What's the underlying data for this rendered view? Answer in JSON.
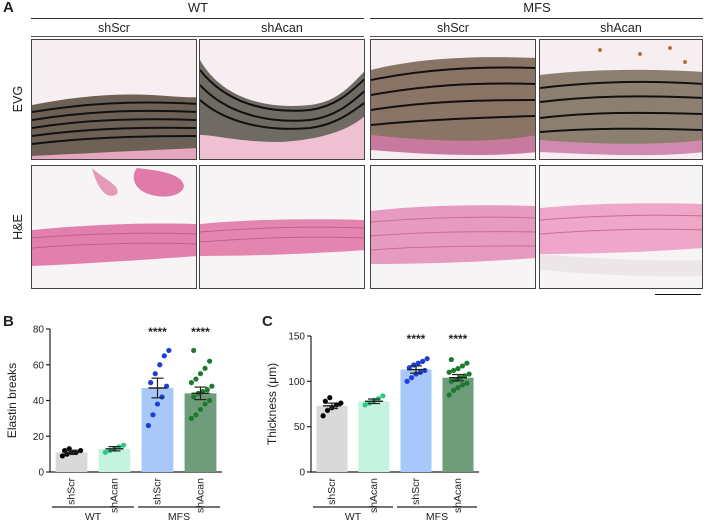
{
  "figure": {
    "panel_a": "A",
    "panel_b": "B",
    "panel_c": "C",
    "groups": [
      "WT",
      "MFS"
    ],
    "columns": [
      "shScr",
      "shAcan",
      "shScr",
      "shAcan"
    ],
    "rows": [
      "EVG",
      "H&E"
    ]
  },
  "colors": {
    "shScr_WT": "#d9d9d9",
    "shAcan_WT": "#c4f3df",
    "shScr_MFS": "#a7c8f8",
    "shAcan_MFS": "#6f9d7c",
    "dot_WT_shScr": "#000000",
    "dot_WT_shAcan": "#2ec88a",
    "dot_MFS_shScr": "#1b3fd6",
    "dot_MFS_shAcan": "#1c7a2c"
  },
  "chart_data": [
    {
      "type": "bar",
      "panel": "B",
      "title": "",
      "xlabel": "",
      "ylabel": "Elastin breaks",
      "ylim": [
        0,
        80
      ],
      "yticks": [
        0,
        20,
        40,
        60,
        80
      ],
      "categories": [
        "shScr",
        "shAcan",
        "shScr",
        "shAcan"
      ],
      "groups": [
        {
          "label": "WT",
          "categories": [
            0,
            1
          ]
        },
        {
          "label": "MFS",
          "categories": [
            2,
            3
          ]
        }
      ],
      "values": [
        11,
        13,
        47,
        44
      ],
      "sem": [
        1.2,
        1.2,
        5.5,
        3.5
      ],
      "significance": [
        "",
        "",
        "****",
        "****"
      ],
      "points": [
        [
          9,
          10,
          11,
          11,
          12,
          12,
          13
        ],
        [
          11,
          12,
          13,
          14,
          15
        ],
        [
          26,
          32,
          38,
          42,
          48,
          50,
          55,
          60,
          65,
          68
        ],
        [
          30,
          32,
          35,
          38,
          40,
          42,
          44,
          45,
          46,
          48,
          50,
          52,
          55,
          58,
          62,
          68
        ]
      ]
    },
    {
      "type": "bar",
      "panel": "C",
      "title": "",
      "xlabel": "",
      "ylabel": "Thickness (μm)",
      "ylim": [
        0,
        150
      ],
      "yticks": [
        0,
        50,
        100,
        150
      ],
      "categories": [
        "shScr",
        "shAcan",
        "shScr",
        "shAcan"
      ],
      "groups": [
        {
          "label": "WT",
          "categories": [
            0,
            1
          ]
        },
        {
          "label": "MFS",
          "categories": [
            2,
            3
          ]
        }
      ],
      "values": [
        73,
        78,
        113,
        104
      ],
      "sem": [
        3,
        2.5,
        4,
        3.5
      ],
      "significance": [
        "",
        "",
        "****",
        "****"
      ],
      "points": [
        [
          62,
          68,
          71,
          74,
          76,
          78,
          82
        ],
        [
          74,
          76,
          79,
          81,
          84
        ],
        [
          100,
          104,
          108,
          110,
          112,
          115,
          118,
          120,
          122,
          125
        ],
        [
          85,
          90,
          93,
          96,
          98,
          100,
          102,
          104,
          106,
          108,
          110,
          112,
          114,
          117,
          120,
          124
        ]
      ]
    }
  ]
}
